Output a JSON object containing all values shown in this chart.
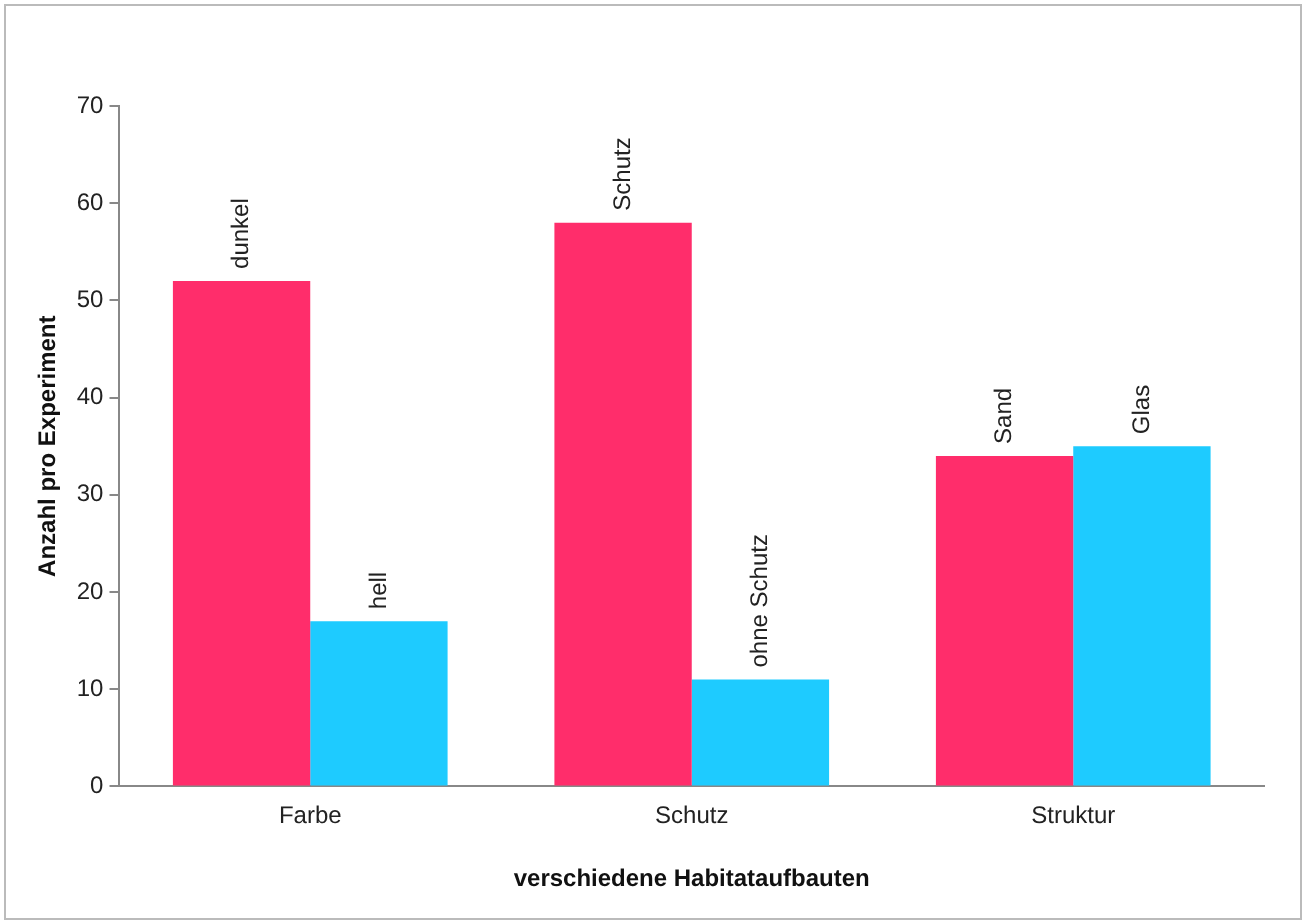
{
  "chart_data": {
    "type": "bar",
    "xlabel": "verschiedene Habitataufbauten",
    "ylabel": "Anzahl pro Experiment",
    "categories": [
      "Farbe",
      "Schutz",
      "Struktur"
    ],
    "series": [
      {
        "color": "#ff2d6b",
        "values": [
          52,
          58,
          34
        ],
        "value_labels": [
          "dunkel",
          "Schutz",
          "Sand"
        ]
      },
      {
        "color": "#1ecbff",
        "values": [
          17,
          11,
          35
        ],
        "value_labels": [
          "hell",
          "ohne Schutz",
          "Glas"
        ]
      }
    ],
    "ylim": [
      0,
      70
    ],
    "yticks": [
      0,
      10,
      20,
      30,
      40,
      50,
      60,
      70
    ],
    "grid": false,
    "legend": false
  }
}
